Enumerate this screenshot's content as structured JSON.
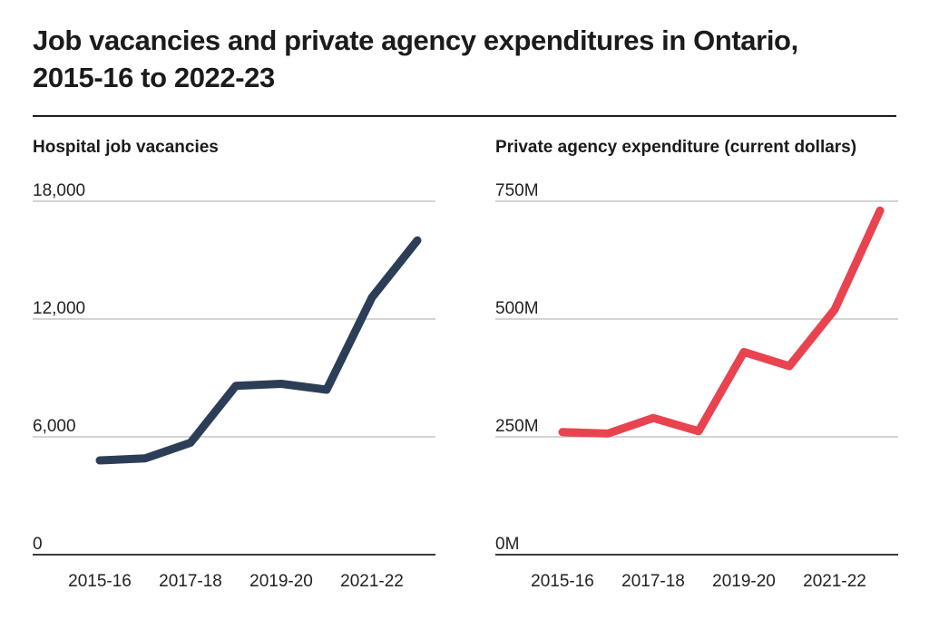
{
  "header": {
    "title_line1": "Job vacancies and private agency expenditures in Ontario,",
    "title_line2": "2015-16 to 2022-23"
  },
  "colors": {
    "text": "#1b1b1b",
    "gridline": "#a9a9a9",
    "axis_baseline": "#3b3b3b",
    "vacancies_line": "#2c3e57",
    "expenditure_line": "#e8434f"
  },
  "chart_data": [
    {
      "type": "line",
      "title": "Hospital job vacancies",
      "x": [
        "2015-16",
        "2016-17",
        "2017-18",
        "2018-19",
        "2019-20",
        "2020-21",
        "2021-22",
        "2022-23"
      ],
      "values": [
        4800,
        4900,
        5700,
        8600,
        8700,
        8400,
        13100,
        16000
      ],
      "ylim": [
        0,
        18000
      ],
      "y_tick_values": [
        0,
        6000,
        12000,
        18000
      ],
      "y_tick_labels": [
        "0",
        "6,000",
        "12,000",
        "18,000"
      ],
      "x_tick_labels": [
        "2015-16",
        "2017-18",
        "2019-20",
        "2021-22"
      ],
      "line_color": "#2c3e57",
      "grid": "horizontal",
      "legend": "none"
    },
    {
      "type": "line",
      "title": "Private agency expenditure (current dollars)",
      "x": [
        "2015-16",
        "2016-17",
        "2017-18",
        "2018-19",
        "2019-20",
        "2020-21",
        "2021-22",
        "2022-23"
      ],
      "values": [
        260,
        257,
        290,
        262,
        430,
        400,
        520,
        730
      ],
      "unit": "millions of current dollars",
      "ylim": [
        0,
        750
      ],
      "y_tick_values": [
        0,
        250,
        500,
        750
      ],
      "y_tick_labels": [
        "0M",
        "250M",
        "500M",
        "750M"
      ],
      "x_tick_labels": [
        "2015-16",
        "2017-18",
        "2019-20",
        "2021-22"
      ],
      "line_color": "#e8434f",
      "grid": "horizontal",
      "legend": "none"
    }
  ]
}
